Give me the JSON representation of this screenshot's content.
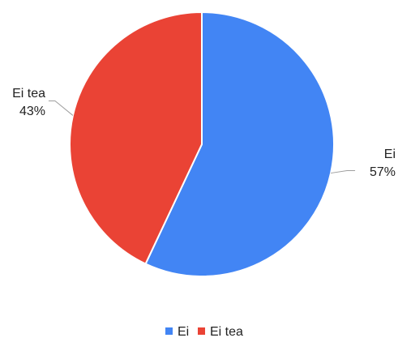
{
  "chart_data": {
    "type": "pie",
    "title": "",
    "slices": [
      {
        "label": "Ei",
        "value": 57,
        "percent_label": "57%",
        "color": "#4285f4"
      },
      {
        "label": "Ei tea",
        "value": 43,
        "percent_label": "43%",
        "color": "#ea4335"
      }
    ],
    "legend": {
      "placement": "bottom",
      "entries": [
        {
          "label": "Ei",
          "color": "#4285f4"
        },
        {
          "label": "Ei tea",
          "color": "#ea4335"
        }
      ]
    }
  }
}
